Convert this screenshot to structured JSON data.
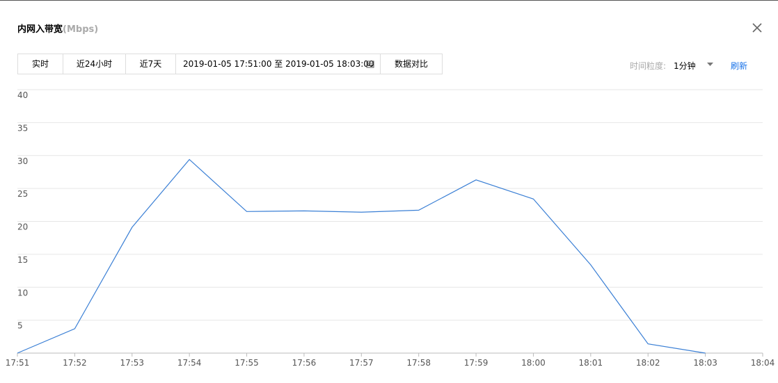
{
  "title": "内网入带宽",
  "unit": "(Mbps)",
  "toolbar": {
    "buttons": [
      "实时",
      "近24小时",
      "近7天"
    ],
    "range": "2019-01-05 17:51:00 至 2019-01-05 18:03:00",
    "compare": "数据对比",
    "granularity_label": "时间粒度:",
    "granularity": "1分钟",
    "refresh": "刷新"
  },
  "chart_data": {
    "type": "line",
    "categories": [
      "17:51",
      "17:52",
      "17:53",
      "17:54",
      "17:55",
      "17:56",
      "17:57",
      "17:58",
      "17:59",
      "18:00",
      "18:01",
      "18:02",
      "18:03",
      "18:04"
    ],
    "values": [
      0,
      3.7,
      19.1,
      29.4,
      21.5,
      21.6,
      21.4,
      21.7,
      26.3,
      23.4,
      13.4,
      1.4,
      0,
      null
    ],
    "color": "#3a7fd5",
    "ylim": [
      0,
      40
    ],
    "yticks": [
      5,
      10,
      15,
      20,
      25,
      30,
      35,
      40
    ],
    "grid": true
  }
}
